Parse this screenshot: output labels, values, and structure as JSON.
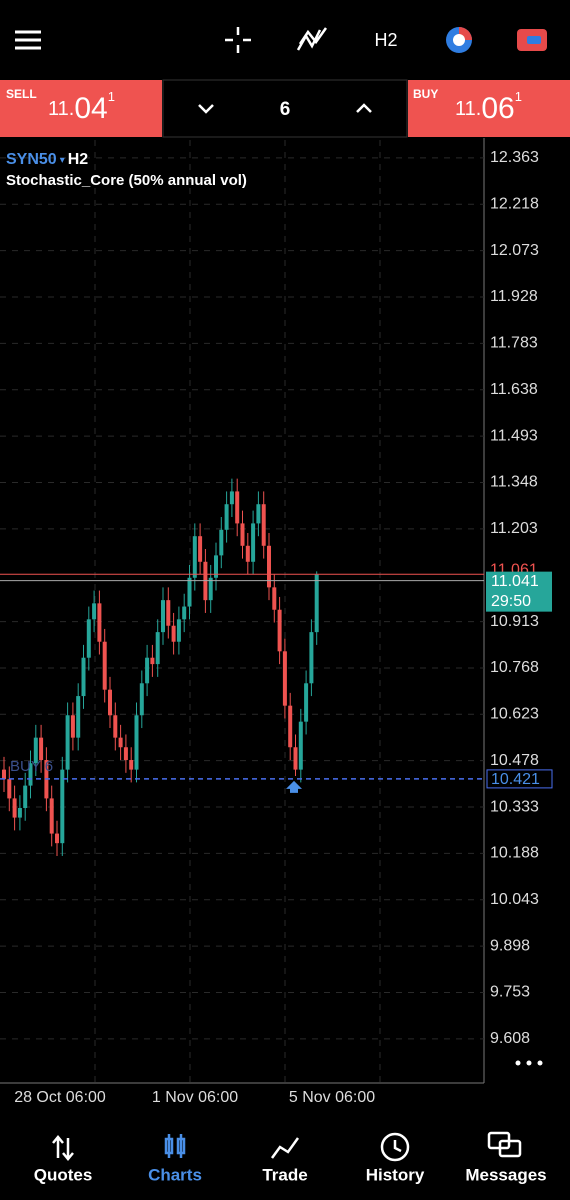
{
  "toolbar": {
    "timeframe": "H2"
  },
  "trade_panel": {
    "sell": {
      "label": "SELL",
      "price_parts": [
        "11.",
        "04",
        "1"
      ]
    },
    "volume": "6",
    "buy": {
      "label": "BUY",
      "price_parts": [
        "11.",
        "06",
        "1"
      ]
    }
  },
  "chart_data": {
    "type": "candlestick",
    "symbol": "SYN50",
    "timeframe": "H2",
    "indicator": "Stochastic_Core (50% annual vol)",
    "up_color": "#26a69a",
    "down_color": "#ef5350",
    "open": [
      10.45,
      10.42,
      10.36,
      10.3,
      10.33,
      10.4,
      10.47,
      10.55,
      10.48,
      10.36,
      10.25,
      10.22,
      10.45,
      10.62,
      10.55,
      10.68,
      10.8,
      10.92,
      10.97,
      10.85,
      10.7,
      10.62,
      10.55,
      10.52,
      10.48,
      10.45,
      10.62,
      10.72,
      10.8,
      10.78,
      10.88,
      10.98,
      10.9,
      10.85,
      10.92,
      10.96,
      11.05,
      11.18,
      11.1,
      10.98,
      11.05,
      11.12,
      11.2,
      11.28,
      11.32,
      11.22,
      11.15,
      11.1,
      11.22,
      11.28,
      11.15,
      11.02,
      10.95,
      10.82,
      10.65,
      10.52,
      10.45,
      10.6,
      10.72,
      10.88
    ],
    "high": [
      10.49,
      10.46,
      10.4,
      10.37,
      10.44,
      10.51,
      10.59,
      10.59,
      10.52,
      10.4,
      10.29,
      10.49,
      10.66,
      10.66,
      10.72,
      10.84,
      10.96,
      11.01,
      11.01,
      10.89,
      10.74,
      10.66,
      10.59,
      10.56,
      10.52,
      10.66,
      10.76,
      10.84,
      10.84,
      10.92,
      11.02,
      11.02,
      10.94,
      10.96,
      11.0,
      11.09,
      11.22,
      11.22,
      11.14,
      11.09,
      11.16,
      11.24,
      11.32,
      11.36,
      11.36,
      11.26,
      11.19,
      11.26,
      11.32,
      11.32,
      11.19,
      11.06,
      10.99,
      10.86,
      10.69,
      10.56,
      10.64,
      10.76,
      10.92,
      11.07
    ],
    "low": [
      10.38,
      10.32,
      10.26,
      10.26,
      10.29,
      10.36,
      10.43,
      10.44,
      10.32,
      10.21,
      10.18,
      10.18,
      10.41,
      10.51,
      10.51,
      10.64,
      10.76,
      10.88,
      10.81,
      10.66,
      10.58,
      10.51,
      10.48,
      10.44,
      10.41,
      10.41,
      10.58,
      10.68,
      10.74,
      10.74,
      10.84,
      10.86,
      10.81,
      10.81,
      10.88,
      10.92,
      11.01,
      11.06,
      10.94,
      10.94,
      11.01,
      11.08,
      11.16,
      11.24,
      11.18,
      11.11,
      11.06,
      11.06,
      11.18,
      11.11,
      10.98,
      10.91,
      10.78,
      10.61,
      10.48,
      10.43,
      10.41,
      10.56,
      10.68,
      10.84
    ],
    "close": [
      10.42,
      10.36,
      10.3,
      10.33,
      10.4,
      10.47,
      10.55,
      10.48,
      10.36,
      10.25,
      10.22,
      10.45,
      10.62,
      10.55,
      10.68,
      10.8,
      10.92,
      10.97,
      10.85,
      10.7,
      10.62,
      10.55,
      10.52,
      10.48,
      10.45,
      10.62,
      10.72,
      10.8,
      10.78,
      10.88,
      10.98,
      10.9,
      10.85,
      10.92,
      10.96,
      11.05,
      11.18,
      11.1,
      10.98,
      11.05,
      11.12,
      11.2,
      11.28,
      11.32,
      11.22,
      11.15,
      11.1,
      11.22,
      11.28,
      11.15,
      11.02,
      10.95,
      10.82,
      10.65,
      10.52,
      10.45,
      10.6,
      10.72,
      10.88,
      11.06
    ],
    "ylim": [
      9.47,
      12.419
    ],
    "yticks": [
      12.363,
      12.218,
      12.073,
      11.928,
      11.783,
      11.638,
      11.493,
      11.348,
      11.203,
      10.913,
      10.768,
      10.623,
      10.478,
      10.333,
      10.188,
      10.043,
      9.898,
      9.753,
      9.608
    ],
    "grid": true,
    "x_labels": [
      "28 Oct 06:00",
      "1 Nov 06:00",
      "5 Nov 06:00"
    ],
    "bid": 11.041,
    "ask": 11.061,
    "countdown": "29:50",
    "order": {
      "label": "BUY 6",
      "price": 10.421
    }
  },
  "nav": {
    "items": [
      "Quotes",
      "Charts",
      "Trade",
      "History",
      "Messages"
    ],
    "active": 1
  }
}
